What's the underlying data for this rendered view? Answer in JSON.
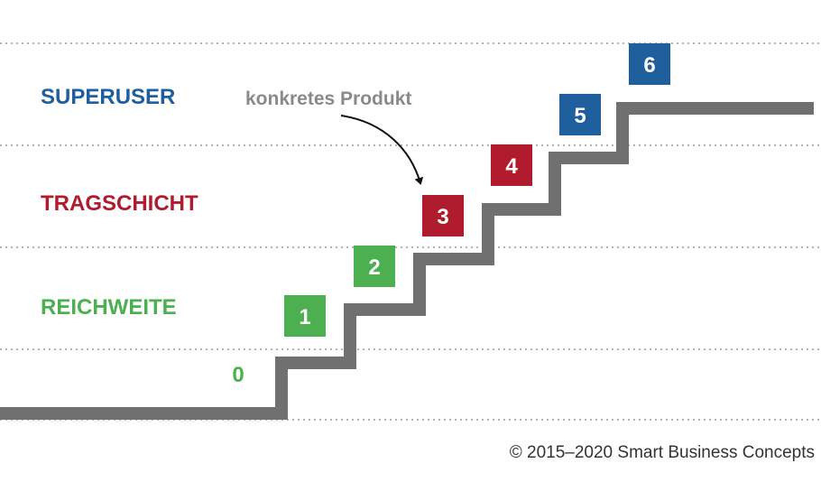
{
  "levels": [
    {
      "label": "SUPERUSER",
      "color": "#1f5f9e"
    },
    {
      "label": "TRAGSCHICHT",
      "color": "#b01c2e"
    },
    {
      "label": "REICHWEITE",
      "color": "#4caf50"
    }
  ],
  "steps": [
    {
      "number": "0",
      "color": "#4caf50",
      "boxed": false
    },
    {
      "number": "1",
      "color": "#4caf50",
      "boxed": true
    },
    {
      "number": "2",
      "color": "#4caf50",
      "boxed": true
    },
    {
      "number": "3",
      "color": "#b01c2e",
      "boxed": true
    },
    {
      "number": "4",
      "color": "#b01c2e",
      "boxed": true
    },
    {
      "number": "5",
      "color": "#1f5f9e",
      "boxed": true
    },
    {
      "number": "6",
      "color": "#1f5f9e",
      "boxed": true
    }
  ],
  "annotation": {
    "text": "konkretes Produkt",
    "color": "#8a8a8a"
  },
  "copyright": "© 2015–2020 Smart Business Concepts",
  "colors": {
    "staircase": "#707070",
    "gridline": "#9a9a9a",
    "copyright": "#333333"
  }
}
